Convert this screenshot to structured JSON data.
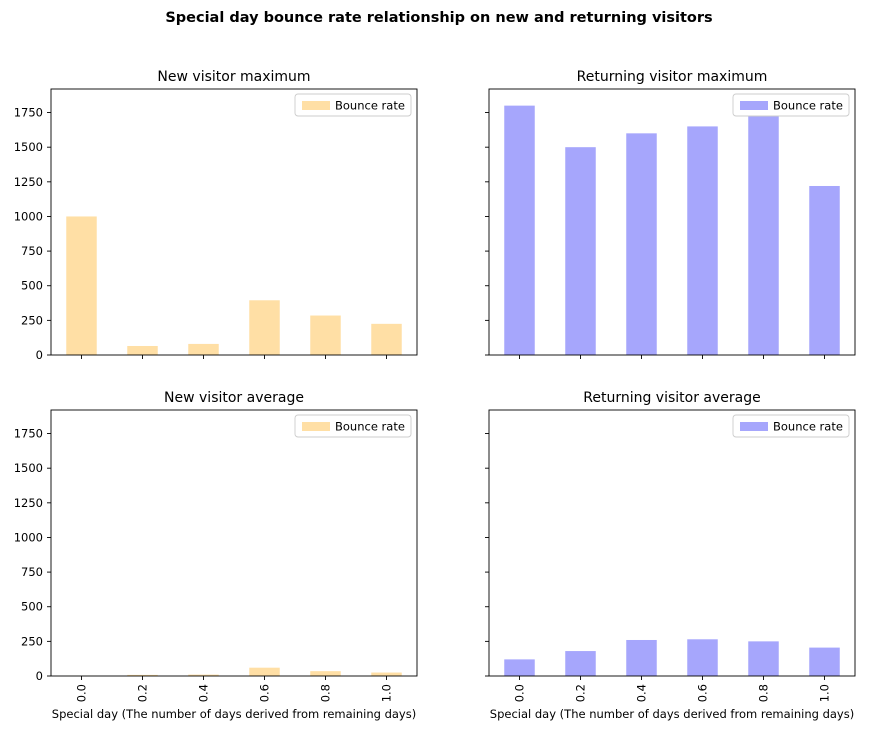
{
  "figure": {
    "title": "Special day bounce rate relationship on new and returning visitors"
  },
  "chart_data": [
    {
      "type": "bar",
      "title": "New visitor maximum",
      "categories": [
        "0.0",
        "0.2",
        "0.4",
        "0.6",
        "0.8",
        "1.0"
      ],
      "series": [
        {
          "name": "Bounce rate",
          "values": [
            1000,
            65,
            80,
            395,
            285,
            225
          ]
        }
      ],
      "xlabel": "",
      "ylabel": "",
      "ylim": [
        0,
        1920
      ],
      "yticks": [
        0,
        250,
        500,
        750,
        1000,
        1250,
        1500,
        1750
      ],
      "show_xtick_labels": false,
      "show_ytick_labels": true,
      "grid": false,
      "legend_position": "top-right",
      "color": "#ffdfa5"
    },
    {
      "type": "bar",
      "title": "Returning visitor maximum",
      "categories": [
        "0.0",
        "0.2",
        "0.4",
        "0.6",
        "0.8",
        "1.0"
      ],
      "series": [
        {
          "name": "Bounce rate",
          "values": [
            1800,
            1500,
            1600,
            1650,
            1750,
            1220
          ]
        }
      ],
      "xlabel": "",
      "ylabel": "",
      "ylim": [
        0,
        1920
      ],
      "yticks": [
        0,
        250,
        500,
        750,
        1000,
        1250,
        1500,
        1750
      ],
      "show_xtick_labels": false,
      "show_ytick_labels": false,
      "grid": false,
      "legend_position": "top-right",
      "color": "#a6a6fc"
    },
    {
      "type": "bar",
      "title": "New visitor average",
      "categories": [
        "0.0",
        "0.2",
        "0.4",
        "0.6",
        "0.8",
        "1.0"
      ],
      "series": [
        {
          "name": "Bounce rate",
          "values": [
            2,
            8,
            10,
            60,
            35,
            25
          ]
        }
      ],
      "xlabel": "Special day (The number of days derived from remaining days)",
      "ylabel": "",
      "ylim": [
        0,
        1920
      ],
      "yticks": [
        0,
        250,
        500,
        750,
        1000,
        1250,
        1500,
        1750
      ],
      "show_xtick_labels": true,
      "show_ytick_labels": true,
      "grid": false,
      "legend_position": "top-right",
      "color": "#ffdfa5"
    },
    {
      "type": "bar",
      "title": "Returning visitor average",
      "categories": [
        "0.0",
        "0.2",
        "0.4",
        "0.6",
        "0.8",
        "1.0"
      ],
      "series": [
        {
          "name": "Bounce rate",
          "values": [
            120,
            180,
            260,
            265,
            250,
            205
          ]
        }
      ],
      "xlabel": "Special day (The number of days derived from remaining days)",
      "ylabel": "",
      "ylim": [
        0,
        1920
      ],
      "yticks": [
        0,
        250,
        500,
        750,
        1000,
        1250,
        1500,
        1750
      ],
      "show_xtick_labels": true,
      "show_ytick_labels": false,
      "grid": false,
      "legend_position": "top-right",
      "color": "#a6a6fc"
    }
  ]
}
